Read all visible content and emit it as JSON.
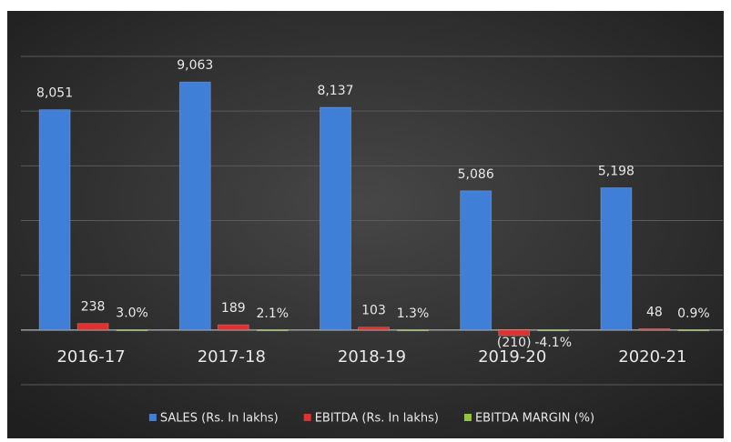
{
  "chart_data": {
    "type": "bar",
    "categories": [
      "2016-17",
      "2017-18",
      "2018-19",
      "2019-20",
      "2020-21"
    ],
    "series": [
      {
        "name": "SALES (Rs. In lakhs)",
        "color": "#3f7fd8",
        "values": [
          8051,
          9063,
          8137,
          5086,
          5198
        ],
        "value_labels": [
          "8,051",
          "9,063",
          "8,137",
          "5,086",
          "5,198"
        ]
      },
      {
        "name": "EBITDA (Rs. In lakhs)",
        "color": "#e0312f",
        "values": [
          238,
          189,
          103,
          -210,
          48
        ],
        "value_labels": [
          "238",
          "189",
          "103",
          "(210)",
          "48"
        ]
      },
      {
        "name": "EBITDA MARGIN (%)",
        "color": "#92c63e",
        "values": [
          3.0,
          2.1,
          1.3,
          -4.1,
          0.9
        ],
        "value_labels": [
          "3.0%",
          "2.1%",
          "1.3%",
          "-4.1%",
          "0.9%"
        ]
      }
    ],
    "ylim": [
      -2000,
      10000
    ],
    "yticks": [
      -2000,
      0,
      2000,
      4000,
      6000,
      8000,
      10000
    ],
    "grid": true,
    "legend": "bottom"
  }
}
